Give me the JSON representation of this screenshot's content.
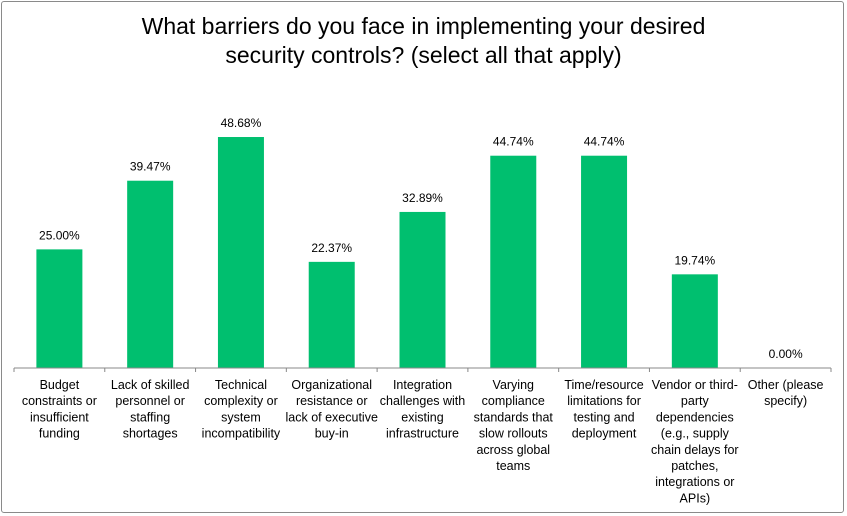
{
  "chart_data": {
    "type": "bar",
    "title": [
      "What barriers do you face in implementing your desired",
      "security controls? (select all that apply)"
    ],
    "categories": [
      [
        "Budget",
        "constraints or",
        "insufficient",
        "funding"
      ],
      [
        "Lack of skilled",
        "personnel or",
        "staffing",
        "shortages"
      ],
      [
        "Technical",
        "complexity or",
        "system",
        "incompatibility"
      ],
      [
        "Organizational",
        "resistance or",
        "lack of executive",
        "buy-in"
      ],
      [
        "Integration",
        "challenges with",
        "existing",
        "infrastructure"
      ],
      [
        "Varying",
        "compliance",
        "standards that",
        "slow rollouts",
        "across global",
        "teams"
      ],
      [
        "Time/resource",
        "limitations for",
        "testing and",
        "deployment"
      ],
      [
        "Vendor or third-",
        "party",
        "dependencies",
        "(e.g., supply",
        "chain delays for",
        "patches,",
        "integrations or",
        "APIs)"
      ],
      [
        "Other (please",
        "specify)"
      ]
    ],
    "values": [
      25.0,
      39.47,
      48.68,
      22.37,
      32.89,
      44.74,
      44.74,
      19.74,
      0.0
    ],
    "value_labels": [
      "25.00%",
      "39.47%",
      "48.68%",
      "22.37%",
      "32.89%",
      "44.74%",
      "44.74%",
      "19.74%",
      "0.00%"
    ],
    "xlabel": "",
    "ylabel": "",
    "ylim": [
      0,
      55
    ],
    "grid": false,
    "legend": "none",
    "bar_color": "#00bf6f"
  }
}
